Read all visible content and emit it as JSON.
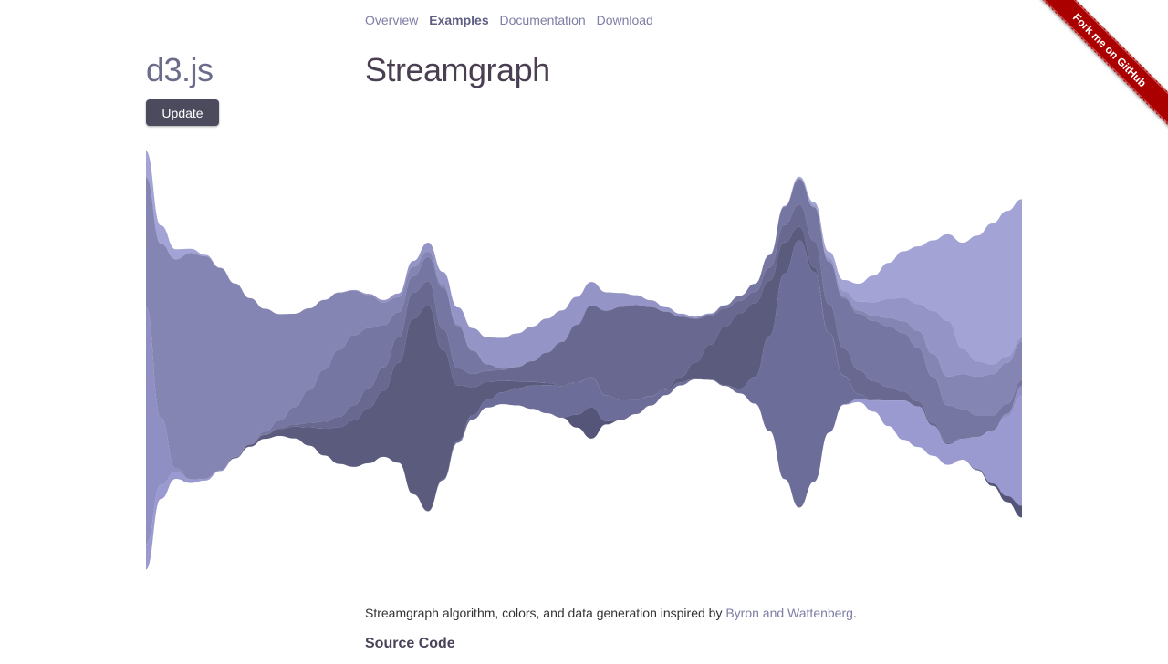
{
  "nav": {
    "items": [
      {
        "label": "Overview"
      },
      {
        "label": "Examples",
        "active": true
      },
      {
        "label": "Documentation"
      },
      {
        "label": "Download"
      }
    ]
  },
  "brand": {
    "logo": "d3.js"
  },
  "page": {
    "title": "Streamgraph"
  },
  "controls": {
    "update_label": "Update"
  },
  "description": {
    "prefix": "Streamgraph algorithm, colors, and data generation inspired by ",
    "link": "Byron and Wattenberg",
    "suffix": "."
  },
  "section": {
    "source_code": "Source Code"
  },
  "ribbon": {
    "label": "Fork me on GitHub",
    "color": "#aa0000"
  },
  "chart_data": {
    "type": "area",
    "layers": 10,
    "colors": [
      "#a3a3d6",
      "#9494c6",
      "#8585b4",
      "#7676a2",
      "#686890",
      "#5b5b7e",
      "#8f8fc3",
      "#6d6d99",
      "#9a9ad0",
      "#55557a"
    ]
  }
}
